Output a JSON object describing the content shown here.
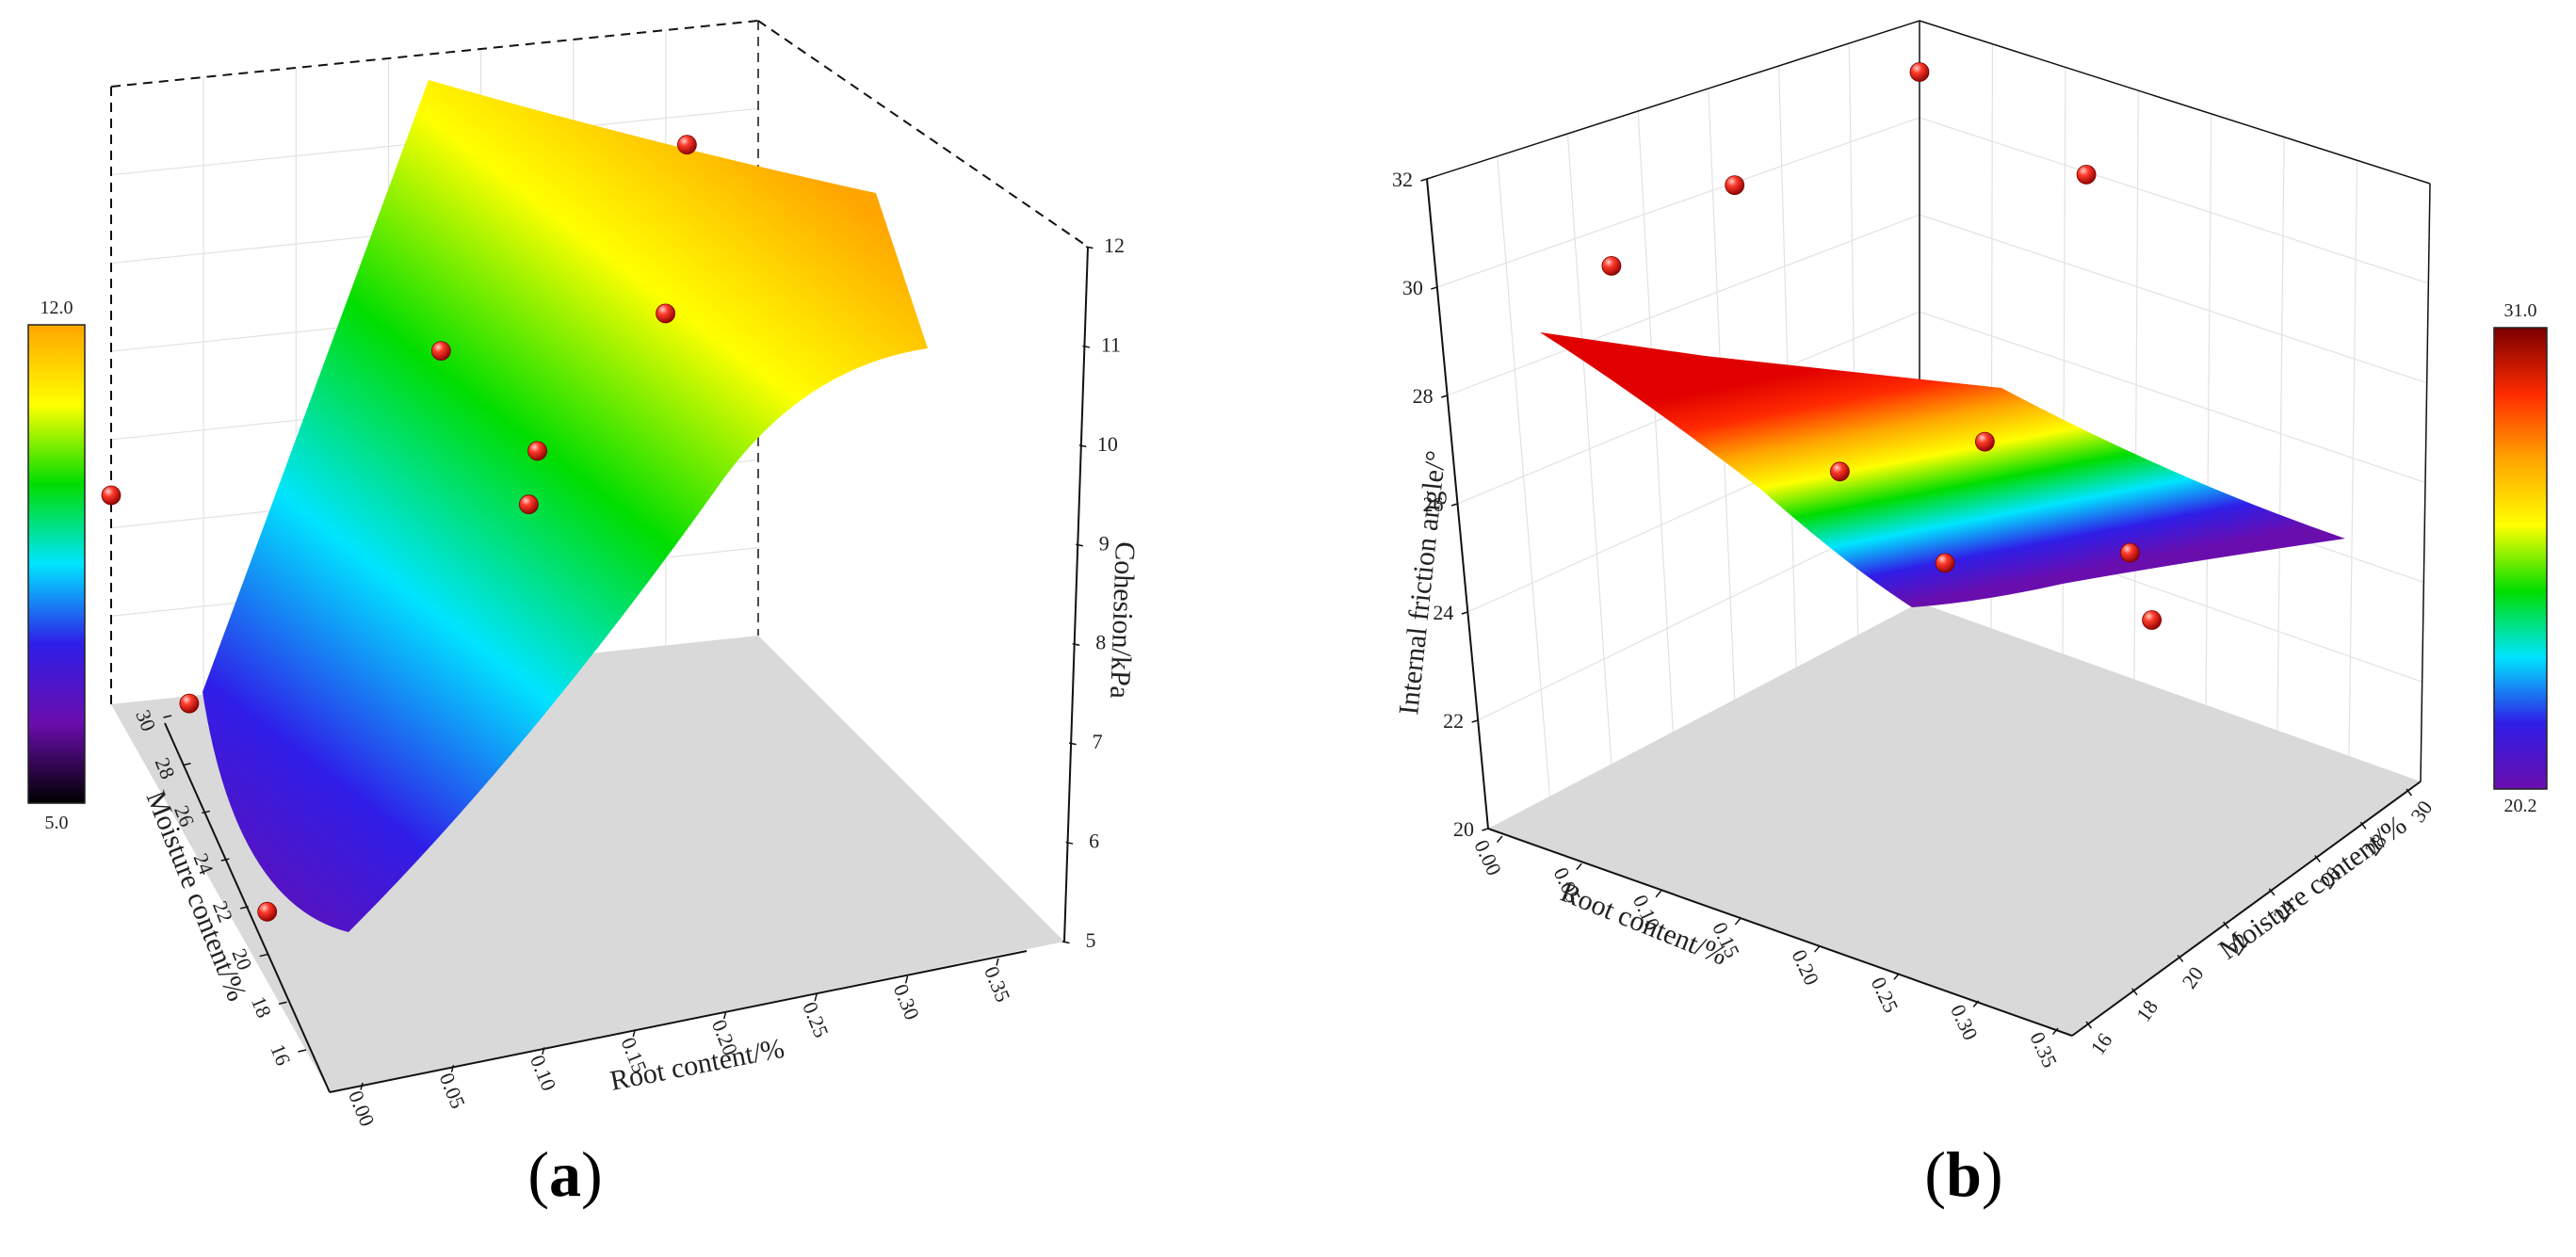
{
  "figure": {
    "panels": [
      {
        "id": "a",
        "label": "a"
      },
      {
        "id": "b",
        "label": "b"
      }
    ]
  },
  "colors": {
    "floor": "#d9d9d9",
    "grid": "#e2e2e2",
    "axis": "#111111",
    "point": "#e32222",
    "surface_ramp": [
      "#6a0dad",
      "#2f1ee8",
      "#00e5ff",
      "#00dd00",
      "#ffff00",
      "#ffa500",
      "#ff2a00",
      "#7a0000"
    ]
  },
  "chart_data": [
    {
      "type": "surface3d",
      "panel": "a",
      "xlabel": "Root content/%",
      "ylabel": "Moisture content/%",
      "zlabel": "Cohesion/kPa",
      "x_ticks": [
        "0.00",
        "0.05",
        "0.10",
        "0.15",
        "0.20",
        "0.25",
        "0.30",
        "0.35"
      ],
      "y_ticks": [
        "16",
        "18",
        "20",
        "22",
        "24",
        "26",
        "28",
        "30"
      ],
      "z_ticks": [
        "5",
        "6",
        "7",
        "8",
        "9",
        "10",
        "11",
        "12"
      ],
      "xlim": [
        0,
        0.35
      ],
      "ylim": [
        16,
        30
      ],
      "zlim": [
        5,
        12
      ],
      "colorbar": {
        "min": "5.0",
        "max": "12.0"
      },
      "points": [
        {
          "x": 0.0,
          "y": 20,
          "z": 5.7
        },
        {
          "x": 0.0,
          "y": 25,
          "z": 6.4
        },
        {
          "x": 0.0,
          "y": 30,
          "z": 7.1
        },
        {
          "x": 0.1,
          "y": 16,
          "z": 10.5
        },
        {
          "x": 0.12,
          "y": 18,
          "z": 10.4
        },
        {
          "x": 0.2,
          "y": 20,
          "z": 10.9
        },
        {
          "x": 0.25,
          "y": 25,
          "z": 11.0
        },
        {
          "x": 0.3,
          "y": 30,
          "z": 11.4
        },
        {
          "x": 0.15,
          "y": 28,
          "z": 8.5
        }
      ]
    },
    {
      "type": "surface3d",
      "panel": "b",
      "xlabel": "Root content/%",
      "ylabel": "Moisture content/%",
      "zlabel": "Internal friction angle/°",
      "x_ticks": [
        "0.00",
        "0.05",
        "0.10",
        "0.15",
        "0.20",
        "0.25",
        "0.30",
        "0.35"
      ],
      "y_ticks": [
        "16",
        "18",
        "20",
        "22",
        "24",
        "26",
        "28",
        "30"
      ],
      "z_ticks": [
        "20",
        "22",
        "24",
        "26",
        "28",
        "30",
        "32"
      ],
      "xlim": [
        0,
        0.35
      ],
      "ylim": [
        16,
        30
      ],
      "zlim": [
        20,
        32
      ],
      "colorbar": {
        "min": "20.2",
        "max": "31.0"
      },
      "points": [
        {
          "x": 0.0,
          "y": 16,
          "z": 29.8
        },
        {
          "x": 0.0,
          "y": 22,
          "z": 29.5
        },
        {
          "x": 0.0,
          "y": 26,
          "z": 29.2
        },
        {
          "x": 0.1,
          "y": 16,
          "z": 29.0
        },
        {
          "x": 0.1,
          "y": 24,
          "z": 25.9
        },
        {
          "x": 0.15,
          "y": 22,
          "z": 26.4
        },
        {
          "x": 0.2,
          "y": 20,
          "z": 24.3
        },
        {
          "x": 0.25,
          "y": 22,
          "z": 24.2
        },
        {
          "x": 0.2,
          "y": 26,
          "z": 25.9
        }
      ]
    }
  ]
}
